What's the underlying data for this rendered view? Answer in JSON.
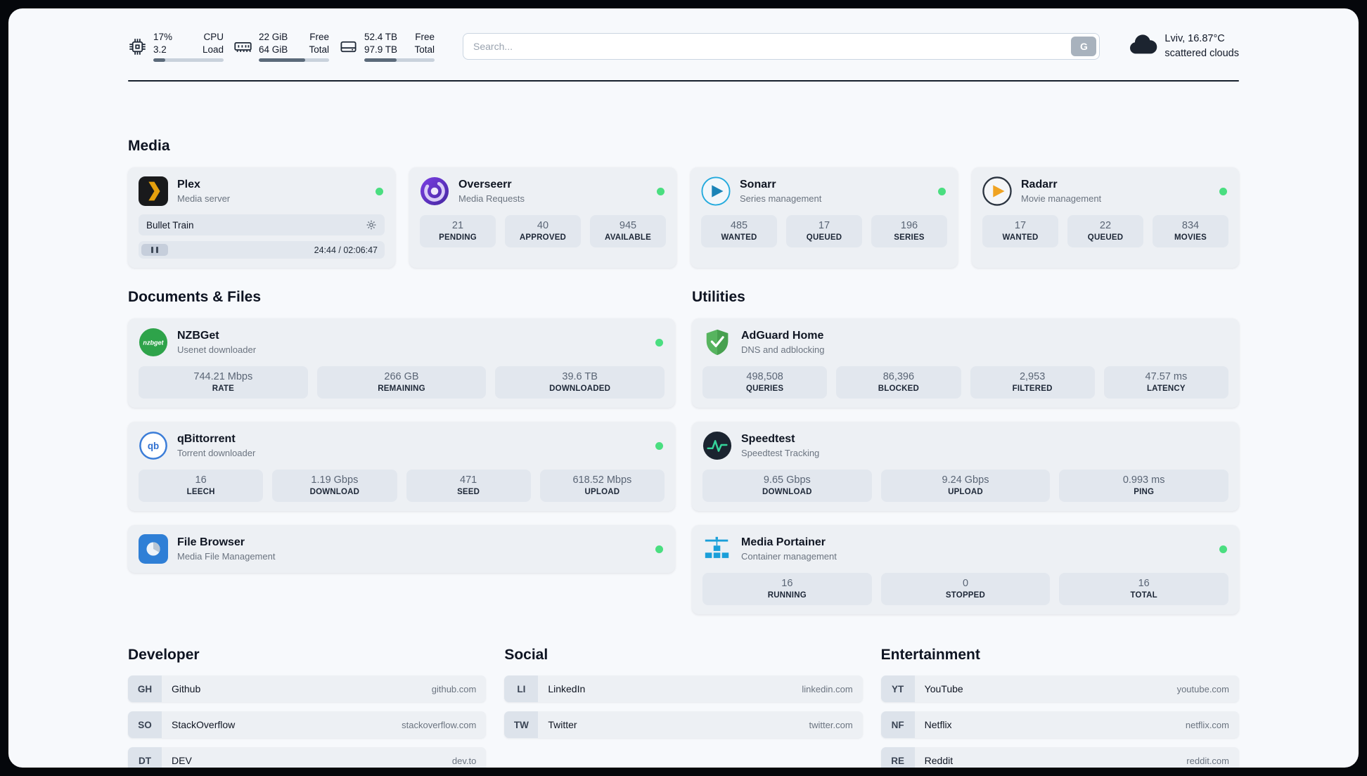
{
  "header": {
    "cpu": {
      "values": [
        "17%",
        "3.2"
      ],
      "labels": [
        "CPU",
        "Load"
      ],
      "progress": 17
    },
    "memory": {
      "values": [
        "22 GiB",
        "64 GiB"
      ],
      "labels": [
        "Free",
        "Total"
      ],
      "progress": 66
    },
    "disk": {
      "values": [
        "52.4 TB",
        "97.9 TB"
      ],
      "labels": [
        "Free",
        "Total"
      ],
      "progress": 46
    },
    "search": {
      "placeholder": "Search...",
      "button_label": "G"
    },
    "weather": {
      "location": "Lviv, 16.87°C",
      "condition": "scattered clouds"
    }
  },
  "media": {
    "title": "Media",
    "plex": {
      "name": "Plex",
      "desc": "Media server",
      "track": "Bullet Train",
      "time": "24:44 / 02:06:47"
    },
    "overseerr": {
      "name": "Overseerr",
      "desc": "Media Requests",
      "stats": [
        {
          "value": "21",
          "label": "PENDING"
        },
        {
          "value": "40",
          "label": "APPROVED"
        },
        {
          "value": "945",
          "label": "AVAILABLE"
        }
      ]
    },
    "sonarr": {
      "name": "Sonarr",
      "desc": "Series management",
      "stats": [
        {
          "value": "485",
          "label": "WANTED"
        },
        {
          "value": "17",
          "label": "QUEUED"
        },
        {
          "value": "196",
          "label": "SERIES"
        }
      ]
    },
    "radarr": {
      "name": "Radarr",
      "desc": "Movie management",
      "stats": [
        {
          "value": "17",
          "label": "WANTED"
        },
        {
          "value": "22",
          "label": "QUEUED"
        },
        {
          "value": "834",
          "label": "MOVIES"
        }
      ]
    }
  },
  "documents": {
    "title": "Documents & Files",
    "nzbget": {
      "name": "NZBGet",
      "desc": "Usenet downloader",
      "stats": [
        {
          "value": "744.21 Mbps",
          "label": "RATE"
        },
        {
          "value": "266 GB",
          "label": "REMAINING"
        },
        {
          "value": "39.6 TB",
          "label": "DOWNLOADED"
        }
      ]
    },
    "qbittorrent": {
      "name": "qBittorrent",
      "desc": "Torrent downloader",
      "stats": [
        {
          "value": "16",
          "label": "LEECH"
        },
        {
          "value": "1.19 Gbps",
          "label": "DOWNLOAD"
        },
        {
          "value": "471",
          "label": "SEED"
        },
        {
          "value": "618.52 Mbps",
          "label": "UPLOAD"
        }
      ]
    },
    "filebrowser": {
      "name": "File Browser",
      "desc": "Media File Management"
    }
  },
  "utilities": {
    "title": "Utilities",
    "adguard": {
      "name": "AdGuard Home",
      "desc": "DNS and adblocking",
      "stats": [
        {
          "value": "498,508",
          "label": "QUERIES"
        },
        {
          "value": "86,396",
          "label": "BLOCKED"
        },
        {
          "value": "2,953",
          "label": "FILTERED"
        },
        {
          "value": "47.57 ms",
          "label": "LATENCY"
        }
      ]
    },
    "speedtest": {
      "name": "Speedtest",
      "desc": "Speedtest Tracking",
      "stats": [
        {
          "value": "9.65 Gbps",
          "label": "DOWNLOAD"
        },
        {
          "value": "9.24 Gbps",
          "label": "UPLOAD"
        },
        {
          "value": "0.993 ms",
          "label": "PING"
        }
      ]
    },
    "portainer": {
      "name": "Media Portainer",
      "desc": "Container management",
      "stats": [
        {
          "value": "16",
          "label": "RUNNING"
        },
        {
          "value": "0",
          "label": "STOPPED"
        },
        {
          "value": "16",
          "label": "TOTAL"
        }
      ]
    }
  },
  "bookmarks": {
    "developer": {
      "title": "Developer",
      "items": [
        {
          "abbr": "GH",
          "name": "Github",
          "url": "github.com"
        },
        {
          "abbr": "SO",
          "name": "StackOverflow",
          "url": "stackoverflow.com"
        },
        {
          "abbr": "DT",
          "name": "DEV",
          "url": "dev.to"
        }
      ]
    },
    "social": {
      "title": "Social",
      "items": [
        {
          "abbr": "LI",
          "name": "LinkedIn",
          "url": "linkedin.com"
        },
        {
          "abbr": "TW",
          "name": "Twitter",
          "url": "twitter.com"
        }
      ]
    },
    "entertainment": {
      "title": "Entertainment",
      "items": [
        {
          "abbr": "YT",
          "name": "YouTube",
          "url": "youtube.com"
        },
        {
          "abbr": "NF",
          "name": "Netflix",
          "url": "netflix.com"
        },
        {
          "abbr": "RE",
          "name": "Reddit",
          "url": "reddit.com"
        }
      ]
    }
  },
  "icons": {
    "cpu-icon": "chip",
    "memory-icon": "ram-stick",
    "disk-icon": "hard-drive",
    "cloud-icon": "cloud",
    "gear-icon": "gear",
    "pause-icon": "pause"
  },
  "colors": {
    "status_online": "#4ade80",
    "card_bg": "#edf0f4",
    "stat_bg": "#e2e7ee",
    "page_bg": "#f7f9fc"
  }
}
